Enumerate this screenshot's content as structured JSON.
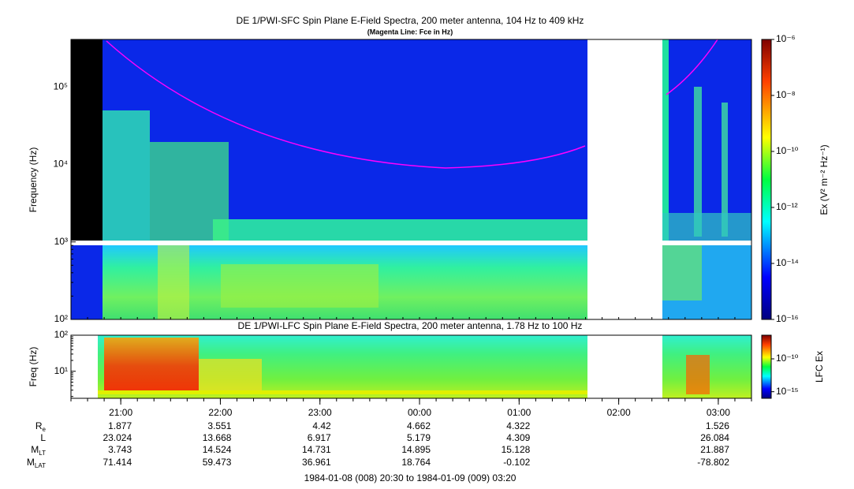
{
  "panels": [
    {
      "title": "DE 1/PWI-SFC  Spin Plane E-Field Spectra, 200 meter antenna, 104 Hz to 409 kHz",
      "subtitle": "(Magenta Line: Fce in Hz)",
      "ylabel": "Frequency (Hz)",
      "ylim": [
        100,
        409000
      ],
      "yticks": [
        {
          "value": 100,
          "label": "10²"
        },
        {
          "value": 1000,
          "label": "10³"
        },
        {
          "value": 10000,
          "label": "10⁴"
        },
        {
          "value": 100000,
          "label": "10⁵"
        }
      ],
      "colorbar": {
        "label": "Ex (V² m⁻² Hz⁻¹)",
        "lim": [
          1e-16,
          1e-06
        ],
        "ticks": [
          {
            "value": 1e-16,
            "label": "10⁻¹⁶"
          },
          {
            "value": 1e-14,
            "label": "10⁻¹⁴"
          },
          {
            "value": 1e-12,
            "label": "10⁻¹²"
          },
          {
            "value": 1e-10,
            "label": "10⁻¹⁰"
          },
          {
            "value": 1e-08,
            "label": "10⁻⁸"
          },
          {
            "value": 1e-06,
            "label": "10⁻⁶"
          }
        ]
      }
    },
    {
      "title": "DE 1/PWI-LFC  Spin Plane E-Field Spectra, 200 meter antenna, 1.78 Hz to 100 Hz",
      "ylabel": "Freq (Hz)",
      "ylim": [
        1.78,
        100
      ],
      "yticks": [
        {
          "value": 10,
          "label": "10¹"
        },
        {
          "value": 100,
          "label": "10²"
        }
      ],
      "colorbar": {
        "label": "LFC Ex",
        "lim": [
          1e-16,
          4e-07
        ],
        "ticks": [
          {
            "value": 1e-15,
            "label": "10⁻¹⁵"
          },
          {
            "value": 1e-10,
            "label": "10⁻¹⁰"
          }
        ]
      }
    }
  ],
  "time_axis": {
    "xlim": [
      "1984-01-08 20:30",
      "1984-01-09 03:20"
    ],
    "xticks": [
      {
        "value": "1984-01-08 21:00",
        "label": "21:00"
      },
      {
        "value": "1984-01-08 22:00",
        "label": "22:00"
      },
      {
        "value": "1984-01-08 23:00",
        "label": "23:00"
      },
      {
        "value": "1984-01-09 00:00",
        "label": "00:00"
      },
      {
        "value": "1984-01-09 01:00",
        "label": "01:00"
      },
      {
        "value": "1984-01-09 02:00",
        "label": "02:00"
      },
      {
        "value": "1984-01-09 03:00",
        "label": "03:00"
      }
    ]
  },
  "ephemeris": [
    {
      "label": "R",
      "sub": "e",
      "values": [
        1.877,
        3.551,
        4.42,
        4.662,
        4.322,
        null,
        1.526
      ]
    },
    {
      "label": "L",
      "values": [
        23.024,
        13.668,
        6.917,
        5.179,
        4.309,
        null,
        26.084
      ]
    },
    {
      "label": "M",
      "sub": "LT",
      "values": [
        3.743,
        14.524,
        14.731,
        14.895,
        15.128,
        null,
        21.887
      ]
    },
    {
      "label": "M",
      "sub": "LAT",
      "values": [
        71.414,
        59.473,
        36.961,
        18.764,
        -0.102,
        null,
        -78.802
      ]
    }
  ],
  "footer": "1984-01-08 (008) 20:30 to 1984-01-09 (009) 03:20"
}
